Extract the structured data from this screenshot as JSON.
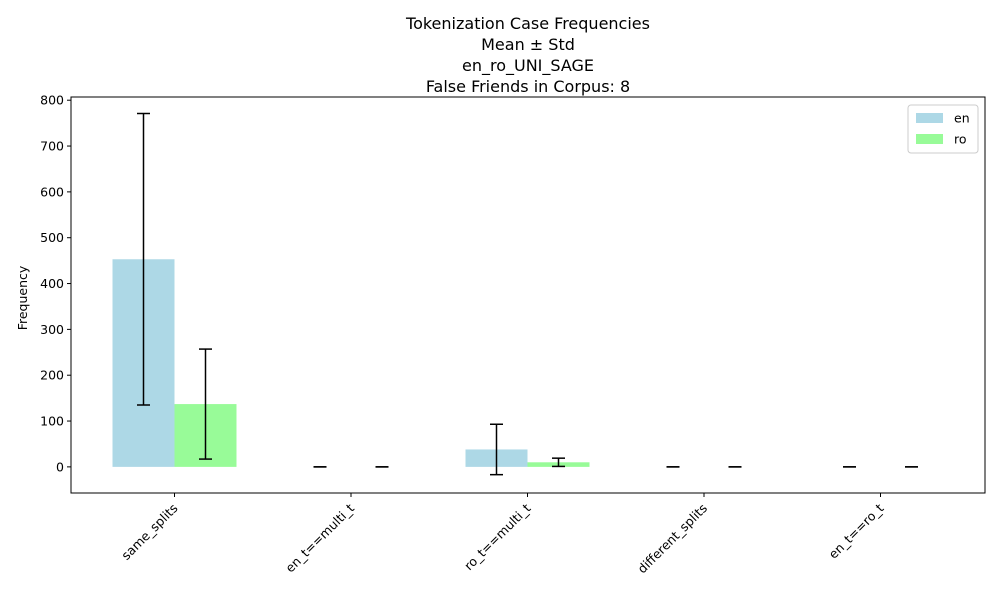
{
  "chart_data": {
    "type": "bar",
    "title_lines": [
      "Tokenization Case Frequencies",
      "Mean ± Std",
      "en_ro_UNI_SAGE",
      "False Friends in Corpus: 8"
    ],
    "xlabel": "",
    "ylabel": "Frequency",
    "categories": [
      "same_splits",
      "en_t==multi_t",
      "ro_t==multi_t",
      "different_splits",
      "en_t==ro_t"
    ],
    "series": [
      {
        "name": "en",
        "color": "#add8e6",
        "values": [
          453,
          0,
          38,
          0,
          0
        ],
        "std": [
          318,
          0,
          55,
          0,
          0
        ]
      },
      {
        "name": "ro",
        "color": "#98fb98",
        "values": [
          137,
          0,
          10,
          0,
          0
        ],
        "std": [
          120,
          0,
          9,
          0,
          0
        ]
      }
    ],
    "yticks": [
      0,
      100,
      200,
      300,
      400,
      500,
      600,
      700,
      800
    ],
    "ylim": [
      -57,
      807
    ],
    "grid": false,
    "legend_position": "top-right",
    "error_bars": true
  }
}
